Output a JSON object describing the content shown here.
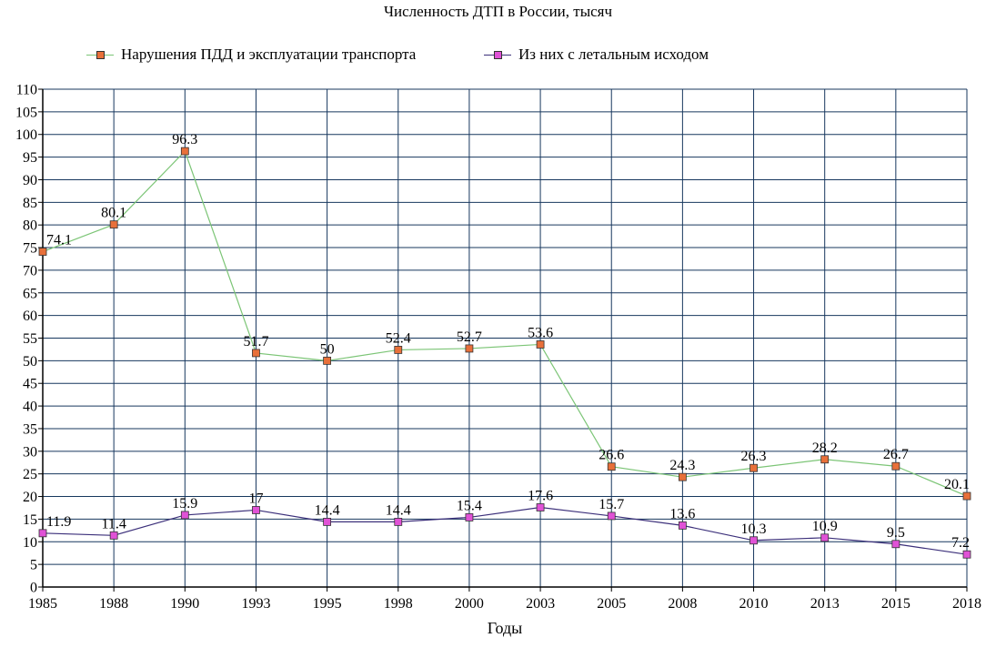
{
  "chart_data": {
    "type": "line",
    "title": "Численность ДТП в России, тысяч",
    "xlabel": "Годы",
    "ylabel": "",
    "ylim": [
      0,
      110
    ],
    "ytick_step": 5,
    "grid": true,
    "legend_position": "top",
    "categories": [
      "1985",
      "1988",
      "1990",
      "1993",
      "1995",
      "1998",
      "2000",
      "2003",
      "2005",
      "2008",
      "2010",
      "2013",
      "2015",
      "2018"
    ],
    "series": [
      {
        "name": "Нарушения ПДД и эксплуатации транспорта",
        "line_color": "#7cc576",
        "marker_color": "#e8703a",
        "values": [
          74.1,
          80.1,
          96.3,
          51.7,
          50,
          52.4,
          52.7,
          53.6,
          26.6,
          24.3,
          26.3,
          28.2,
          26.7,
          20.1
        ],
        "labels": [
          "74.1",
          "80.1",
          "96.3",
          "51.7",
          "50",
          "52.4",
          "52.7",
          "53.6",
          "26.6",
          "24.3",
          "26.3",
          "28.2",
          "26.7",
          "20.1"
        ]
      },
      {
        "name": "Из них с летальным исходом",
        "line_color": "#3b2f7a",
        "marker_color": "#e052d6",
        "values": [
          11.9,
          11.4,
          15.9,
          17,
          14.4,
          14.4,
          15.4,
          17.6,
          15.7,
          13.6,
          10.3,
          10.9,
          9.5,
          7.2
        ],
        "labels": [
          "11.9",
          "11.4",
          "15.9",
          "17",
          "14.4",
          "14.4",
          "15.4",
          "17.6",
          "15.7",
          "13.6",
          "10.3",
          "10.9",
          "9.5",
          "7.2"
        ]
      }
    ]
  }
}
